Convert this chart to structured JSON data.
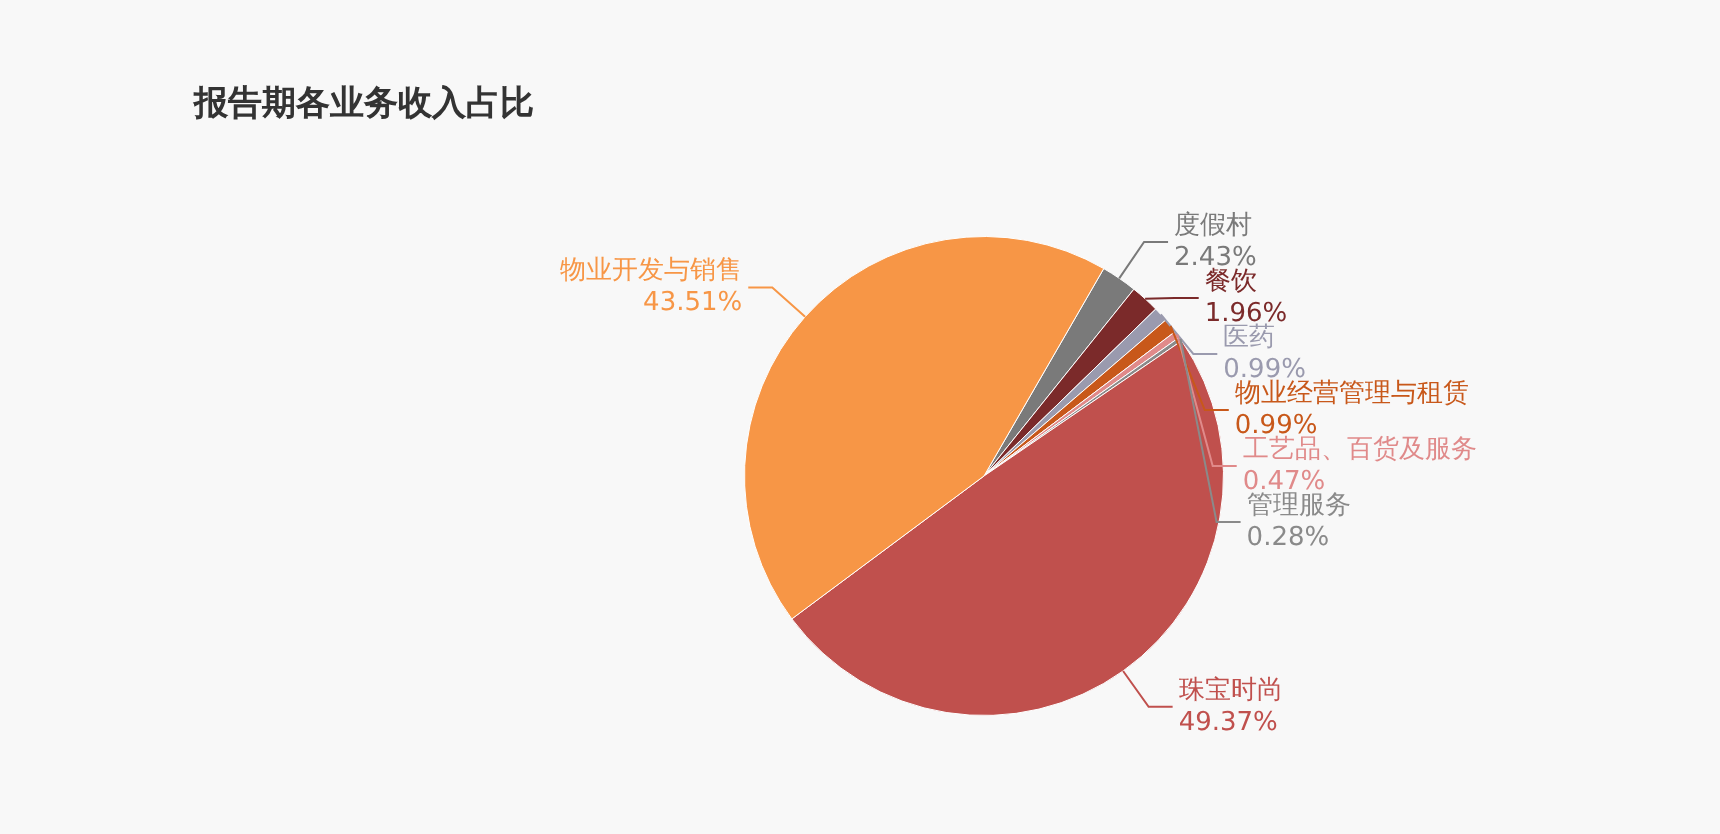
{
  "chart_data": {
    "type": "pie",
    "title": "报告期各业务收入占比",
    "categories": [
      "度假村",
      "餐饮",
      "医药",
      "物业经营管理与租赁",
      "工艺品、百货及服务",
      "管理服务",
      "珠宝时尚",
      "物业开发与销售"
    ],
    "values": [
      2.43,
      1.96,
      0.99,
      0.99,
      0.47,
      0.28,
      49.37,
      43.51
    ],
    "value_labels": [
      "2.43%",
      "1.96%",
      "0.99%",
      "0.99%",
      "0.47%",
      "0.28%",
      "49.37%",
      "43.51%"
    ],
    "colors": [
      "#7a7a7a",
      "#7b2a2a",
      "#9a9aae",
      "#c8581a",
      "#e08a8a",
      "#8a8a8a",
      "#c0504d",
      "#f79646"
    ]
  }
}
